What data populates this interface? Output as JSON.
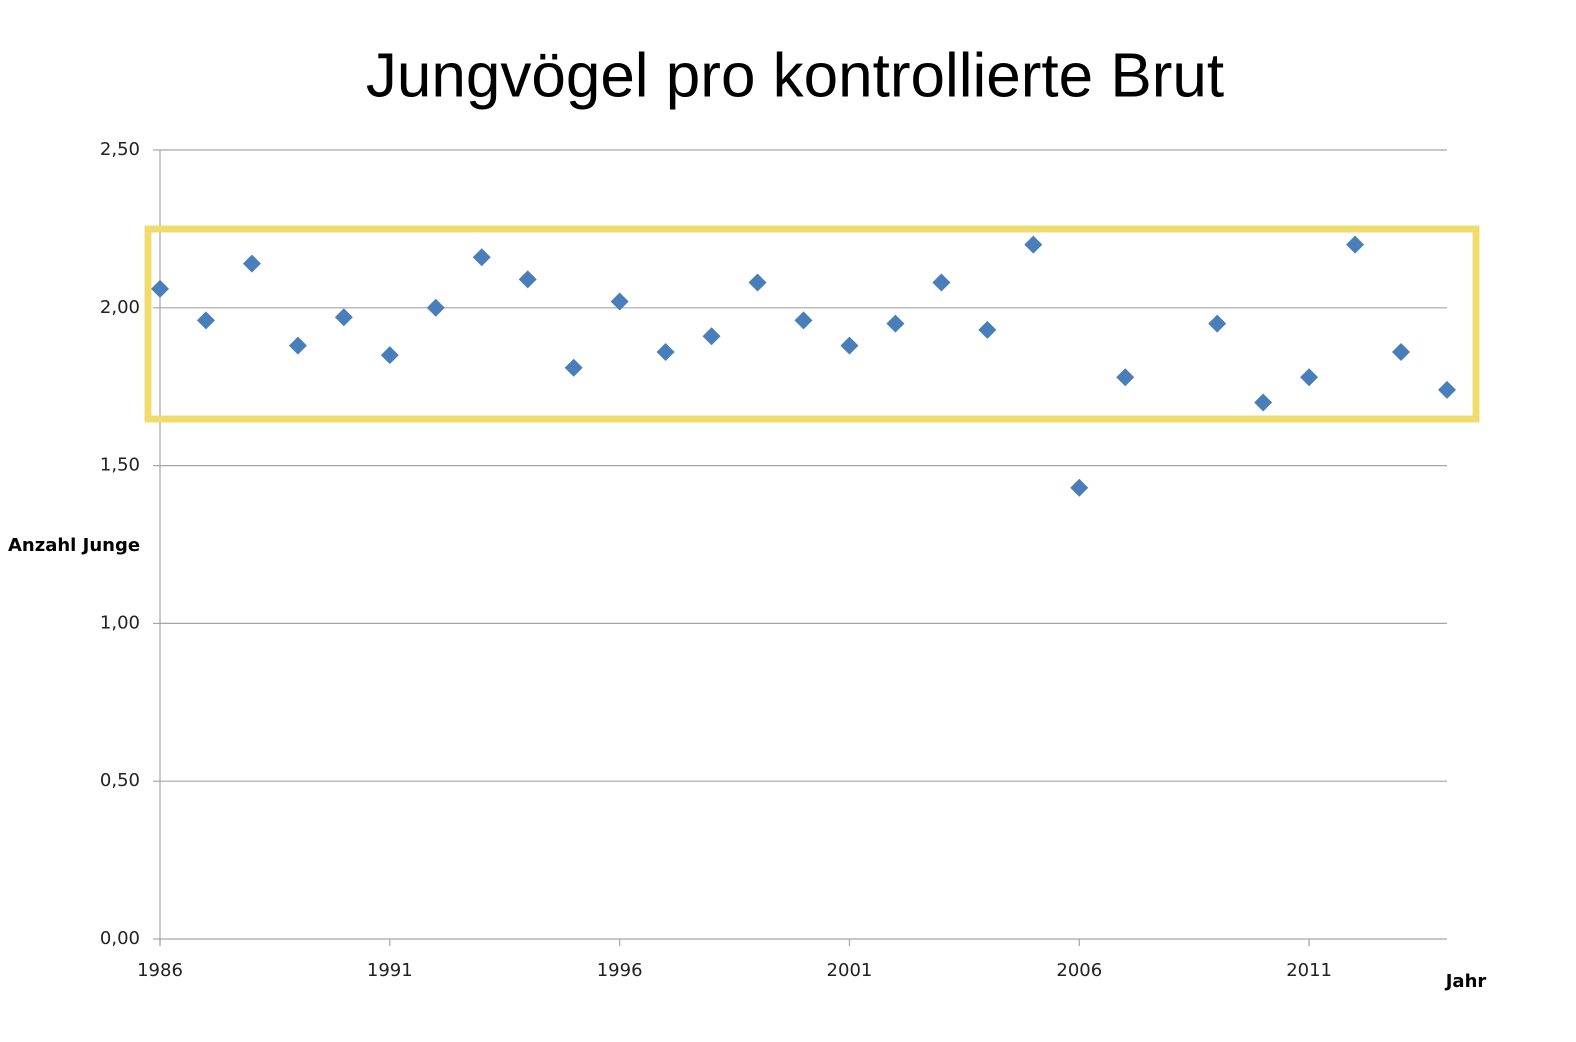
{
  "chart_data": {
    "type": "scatter",
    "title": "Jungvögel pro kontrollierte Brut",
    "x_label": "Jahr",
    "y_label": "Anzahl Junge",
    "series": [
      {
        "name": "Anzahl Junge",
        "color": "#4a7ebb",
        "x": [
          1986,
          1987,
          1988,
          1989,
          1990,
          1991,
          1992,
          1993,
          1994,
          1995,
          1996,
          1997,
          1998,
          1999,
          2000,
          2001,
          2002,
          2003,
          2004,
          2005,
          2006,
          2007,
          2009,
          2010,
          2011,
          2012,
          2013,
          2014
        ],
        "values": [
          2.06,
          1.96,
          2.14,
          1.88,
          1.97,
          1.85,
          2.0,
          2.16,
          2.09,
          1.81,
          2.02,
          1.86,
          1.91,
          2.08,
          1.96,
          1.88,
          1.95,
          2.08,
          1.93,
          2.2,
          1.43,
          1.78,
          1.95,
          1.7,
          1.78,
          2.2,
          1.86,
          1.74
        ]
      }
    ],
    "xlim": [
      1986,
      2014
    ],
    "xticks": [
      1986,
      1991,
      1996,
      2001,
      2006,
      2011
    ],
    "ylim": [
      0,
      2.5
    ],
    "yticks": [
      {
        "value": 0,
        "label": "0,00"
      },
      {
        "value": 0.5,
        "label": "0,50"
      },
      {
        "value": 1,
        "label": "1,00"
      },
      {
        "value": 1.5,
        "label": "1,50"
      },
      {
        "value": 2,
        "label": "2,00"
      },
      {
        "value": 2.5,
        "label": "2,50"
      }
    ],
    "grid": true
  }
}
